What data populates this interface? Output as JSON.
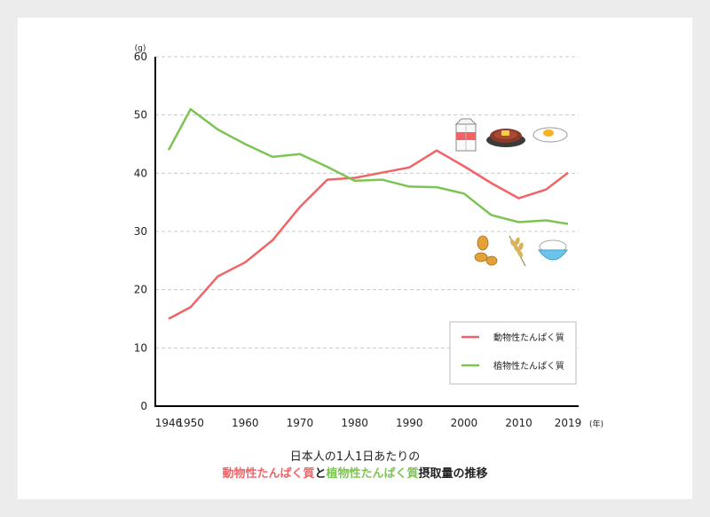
{
  "chart_data": {
    "type": "line",
    "y_unit": "(g)",
    "x_unit": "(年)",
    "ylim": [
      0,
      60
    ],
    "yticks": [
      0,
      10,
      20,
      30,
      40,
      50,
      60
    ],
    "xticks": [
      1946,
      1950,
      1960,
      1970,
      1980,
      1990,
      2000,
      2010,
      2019
    ],
    "xlim": [
      1946,
      2019
    ],
    "grid": "horizontal-dashed",
    "legend_position": "bottom-right",
    "series": [
      {
        "name": "動物性たんぱく質",
        "color": "#f26366",
        "x": [
          1946,
          1950,
          1955,
          1960,
          1965,
          1970,
          1975,
          1980,
          1985,
          1990,
          1995,
          2000,
          2005,
          2010,
          2015,
          2019
        ],
        "values": [
          15.0,
          17.0,
          22.3,
          24.7,
          28.5,
          34.2,
          38.9,
          39.2,
          40.1,
          41.0,
          43.9,
          41.2,
          38.3,
          35.7,
          37.2,
          40.1
        ]
      },
      {
        "name": "植物性たんぱく質",
        "color": "#7dc454",
        "x": [
          1946,
          1950,
          1955,
          1960,
          1965,
          1970,
          1975,
          1980,
          1985,
          1990,
          1995,
          2000,
          2005,
          2010,
          2015,
          2019
        ],
        "values": [
          44.0,
          51.0,
          47.5,
          45.0,
          42.8,
          43.3,
          41.1,
          38.7,
          38.9,
          37.7,
          37.6,
          36.5,
          32.8,
          31.6,
          31.9,
          31.3
        ]
      }
    ],
    "icons_animal": [
      "milk-carton-icon",
      "steak-icon",
      "fried-egg-icon"
    ],
    "icons_plant": [
      "soybeans-icon",
      "wheat-icon",
      "rice-bowl-icon"
    ]
  },
  "caption": {
    "line1": "日本人の1人1日あたりの",
    "animal": "動物性たんぱく質",
    "and": "と",
    "plant": "植物性たんぱく質",
    "tail": "摂取量の推移"
  },
  "colors": {
    "animal": "#f26366",
    "plant": "#7dc454",
    "grid": "#c8c8c8",
    "axis": "#000000"
  }
}
